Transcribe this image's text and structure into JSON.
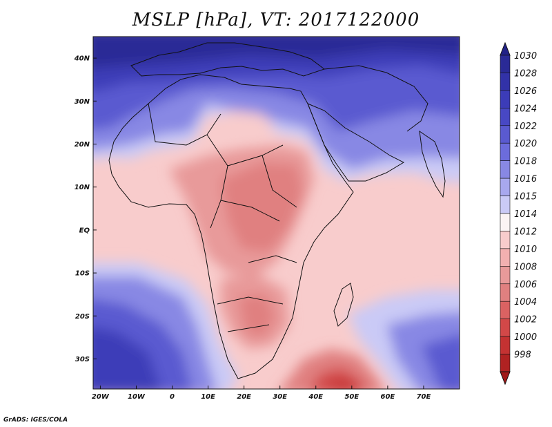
{
  "title": "MSLP [hPa], VT: 2017122000",
  "credit": "GrADS: IGES/COLA",
  "map": {
    "lon_range": [
      -22,
      80
    ],
    "lat_range": [
      -37,
      45
    ],
    "lat_ticks": [
      {
        "value": 40,
        "label": "40N"
      },
      {
        "value": 30,
        "label": "30N"
      },
      {
        "value": 20,
        "label": "20N"
      },
      {
        "value": 10,
        "label": "10N"
      },
      {
        "value": 0,
        "label": "EQ"
      },
      {
        "value": -10,
        "label": "10S"
      },
      {
        "value": -20,
        "label": "20S"
      },
      {
        "value": -30,
        "label": "30S"
      }
    ],
    "lon_ticks": [
      {
        "value": -20,
        "label": "20W"
      },
      {
        "value": -10,
        "label": "10W"
      },
      {
        "value": 0,
        "label": "0"
      },
      {
        "value": 10,
        "label": "10E"
      },
      {
        "value": 20,
        "label": "20E"
      },
      {
        "value": 30,
        "label": "30E"
      },
      {
        "value": 40,
        "label": "40E"
      },
      {
        "value": 50,
        "label": "50E"
      },
      {
        "value": 60,
        "label": "60E"
      },
      {
        "value": 70,
        "label": "70E"
      }
    ]
  },
  "colorbar": {
    "levels": [
      {
        "label": "1030",
        "color": "#2a2a96"
      },
      {
        "label": "1028",
        "color": "#3232a8"
      },
      {
        "label": "1026",
        "color": "#3c3cb8"
      },
      {
        "label": "1024",
        "color": "#4848c4"
      },
      {
        "label": "1022",
        "color": "#5a5ad0"
      },
      {
        "label": "1020",
        "color": "#6c6cdc"
      },
      {
        "label": "1018",
        "color": "#8888e4"
      },
      {
        "label": "1016",
        "color": "#a8a8ee"
      },
      {
        "label": "1015",
        "color": "#cacaf6"
      },
      {
        "label": "1014",
        "color": "#fbf4f4"
      },
      {
        "label": "1012",
        "color": "#f8cccc"
      },
      {
        "label": "1010",
        "color": "#f2b0b0"
      },
      {
        "label": "1008",
        "color": "#e89a9a"
      },
      {
        "label": "1006",
        "color": "#e08080"
      },
      {
        "label": "1004",
        "color": "#da6262"
      },
      {
        "label": "1002",
        "color": "#d24848"
      },
      {
        "label": "1000",
        "color": "#c43232"
      },
      {
        "label": "998",
        "color": "#b02222"
      }
    ],
    "top_color": "#222288",
    "bottom_color": "#a01818"
  }
}
